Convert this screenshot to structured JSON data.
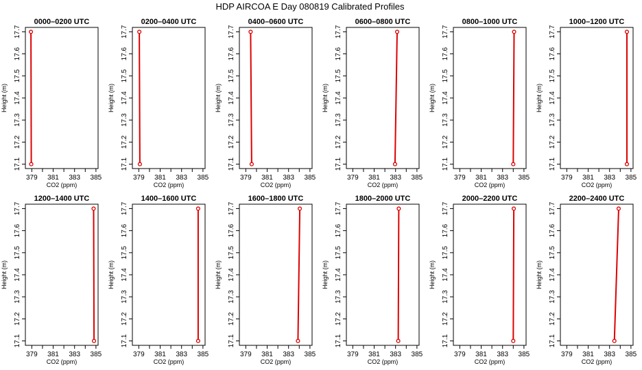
{
  "title": "HDP AIRCOA E  Day 080819  Calibrated Profiles",
  "chart_data": {
    "type": "line",
    "layout": "2x6 small multiples",
    "xlabel": "CO2 (ppm)",
    "ylabel": "Height (m)",
    "xlim": [
      378.4,
      385.2
    ],
    "ylim": [
      17.08,
      17.72
    ],
    "xticks": [
      379,
      380,
      381,
      382,
      383,
      384,
      385
    ],
    "xtick_labels": [
      "379",
      "381",
      "383",
      "385"
    ],
    "yticks": [
      17.1,
      17.2,
      17.3,
      17.4,
      17.5,
      17.6,
      17.7
    ],
    "ytick_labels": [
      "17.1",
      "17.2",
      "17.3",
      "17.4",
      "17.5",
      "17.6",
      "17.7"
    ],
    "line_color": "#dd0000",
    "marker_color": "#dd0000",
    "panels": [
      {
        "title": "0000–0200 UTC",
        "points": [
          {
            "x": 378.95,
            "y": 17.1
          },
          {
            "x": 378.92,
            "y": 17.7
          }
        ]
      },
      {
        "title": "0200–0400 UTC",
        "points": [
          {
            "x": 379.1,
            "y": 17.1
          },
          {
            "x": 379.05,
            "y": 17.7
          }
        ]
      },
      {
        "title": "0400–0600 UTC",
        "points": [
          {
            "x": 379.55,
            "y": 17.1
          },
          {
            "x": 379.45,
            "y": 17.7
          }
        ]
      },
      {
        "title": "0600–0800 UTC",
        "points": [
          {
            "x": 382.95,
            "y": 17.1
          },
          {
            "x": 383.15,
            "y": 17.7
          }
        ]
      },
      {
        "title": "0800–1000 UTC",
        "points": [
          {
            "x": 384.0,
            "y": 17.1
          },
          {
            "x": 384.08,
            "y": 17.7
          }
        ]
      },
      {
        "title": "1000–1200 UTC",
        "points": [
          {
            "x": 384.62,
            "y": 17.1
          },
          {
            "x": 384.62,
            "y": 17.7
          }
        ]
      },
      {
        "title": "1200–1400 UTC",
        "points": [
          {
            "x": 384.82,
            "y": 17.1
          },
          {
            "x": 384.78,
            "y": 17.7
          }
        ]
      },
      {
        "title": "1400–1600 UTC",
        "points": [
          {
            "x": 384.55,
            "y": 17.1
          },
          {
            "x": 384.55,
            "y": 17.7
          }
        ]
      },
      {
        "title": "1600–1800 UTC",
        "points": [
          {
            "x": 383.88,
            "y": 17.1
          },
          {
            "x": 384.05,
            "y": 17.7
          }
        ]
      },
      {
        "title": "1800–2000 UTC",
        "points": [
          {
            "x": 383.25,
            "y": 17.1
          },
          {
            "x": 383.3,
            "y": 17.7
          }
        ]
      },
      {
        "title": "2000–2200 UTC",
        "points": [
          {
            "x": 384.0,
            "y": 17.1
          },
          {
            "x": 384.05,
            "y": 17.7
          }
        ]
      },
      {
        "title": "2200–2400 UTC",
        "points": [
          {
            "x": 383.45,
            "y": 17.1
          },
          {
            "x": 383.85,
            "y": 17.7
          }
        ]
      }
    ]
  }
}
